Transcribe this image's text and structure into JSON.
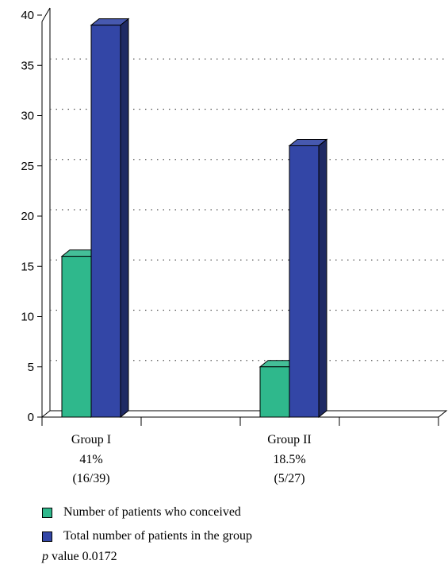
{
  "chart_data": {
    "type": "bar",
    "categories": [
      "Group I",
      "Group II"
    ],
    "category_sublabels": [
      [
        "41%",
        "(16/39)"
      ],
      [
        "18.5%",
        "(5/27)"
      ]
    ],
    "series": [
      {
        "name": "Number of patients who conceived",
        "values": [
          16,
          5
        ],
        "color": "#2fb88c"
      },
      {
        "name": "Total number of patients in the group",
        "values": [
          39,
          27
        ],
        "color": "#3346a6"
      }
    ],
    "ylim": [
      0,
      40
    ],
    "yticks": [
      0,
      5,
      10,
      15,
      20,
      25,
      30,
      35,
      40
    ],
    "grid": "dotted",
    "legend_position": "bottom-left",
    "three_d": true
  },
  "footer": {
    "p_label": "p",
    "p_text": "value 0.0172"
  }
}
